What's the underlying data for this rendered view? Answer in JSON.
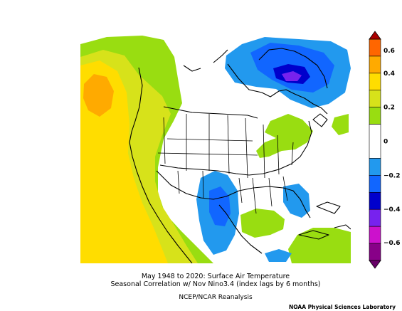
{
  "figure": {
    "title_line1": "May 1948 to 2020: Surface Air Temperature",
    "title_line2": "Seasonal Correlation w/ Nov Nino3.4 (index lags by 6 months)",
    "source": "NCEP/NCAR Reanalysis",
    "credit": "NOAA Physical Sciences Laboratory"
  },
  "colorbar": {
    "labels": [
      "0.6",
      "0.4",
      "0.2",
      "0",
      "−0.2",
      "−0.4",
      "−0.6"
    ],
    "bins": [
      {
        "range": [
          0.5,
          0.6
        ],
        "color": "#ff6600"
      },
      {
        "range": [
          0.4,
          0.5
        ],
        "color": "#ffaa00"
      },
      {
        "range": [
          0.3,
          0.4
        ],
        "color": "#ffdd00"
      },
      {
        "range": [
          0.2,
          0.3
        ],
        "color": "#d7e21a"
      },
      {
        "range": [
          0.1,
          0.2
        ],
        "color": "#99dd11"
      },
      {
        "range": [
          -0.1,
          0.1
        ],
        "color": "#ffffff"
      },
      {
        "range": [
          -0.2,
          -0.1
        ],
        "color": "#2299ee"
      },
      {
        "range": [
          -0.3,
          -0.2
        ],
        "color": "#1166ff"
      },
      {
        "range": [
          -0.4,
          -0.3
        ],
        "color": "#0000cc"
      },
      {
        "range": [
          -0.5,
          -0.4
        ],
        "color": "#7722ee"
      },
      {
        "range": [
          -0.6,
          -0.5
        ],
        "color": "#cc11cc"
      },
      {
        "range": [
          -0.7,
          -0.6
        ],
        "color": "#880088"
      }
    ],
    "top_arrow_color": "#aa0000",
    "bottom_arrow_color": "#660066"
  }
}
